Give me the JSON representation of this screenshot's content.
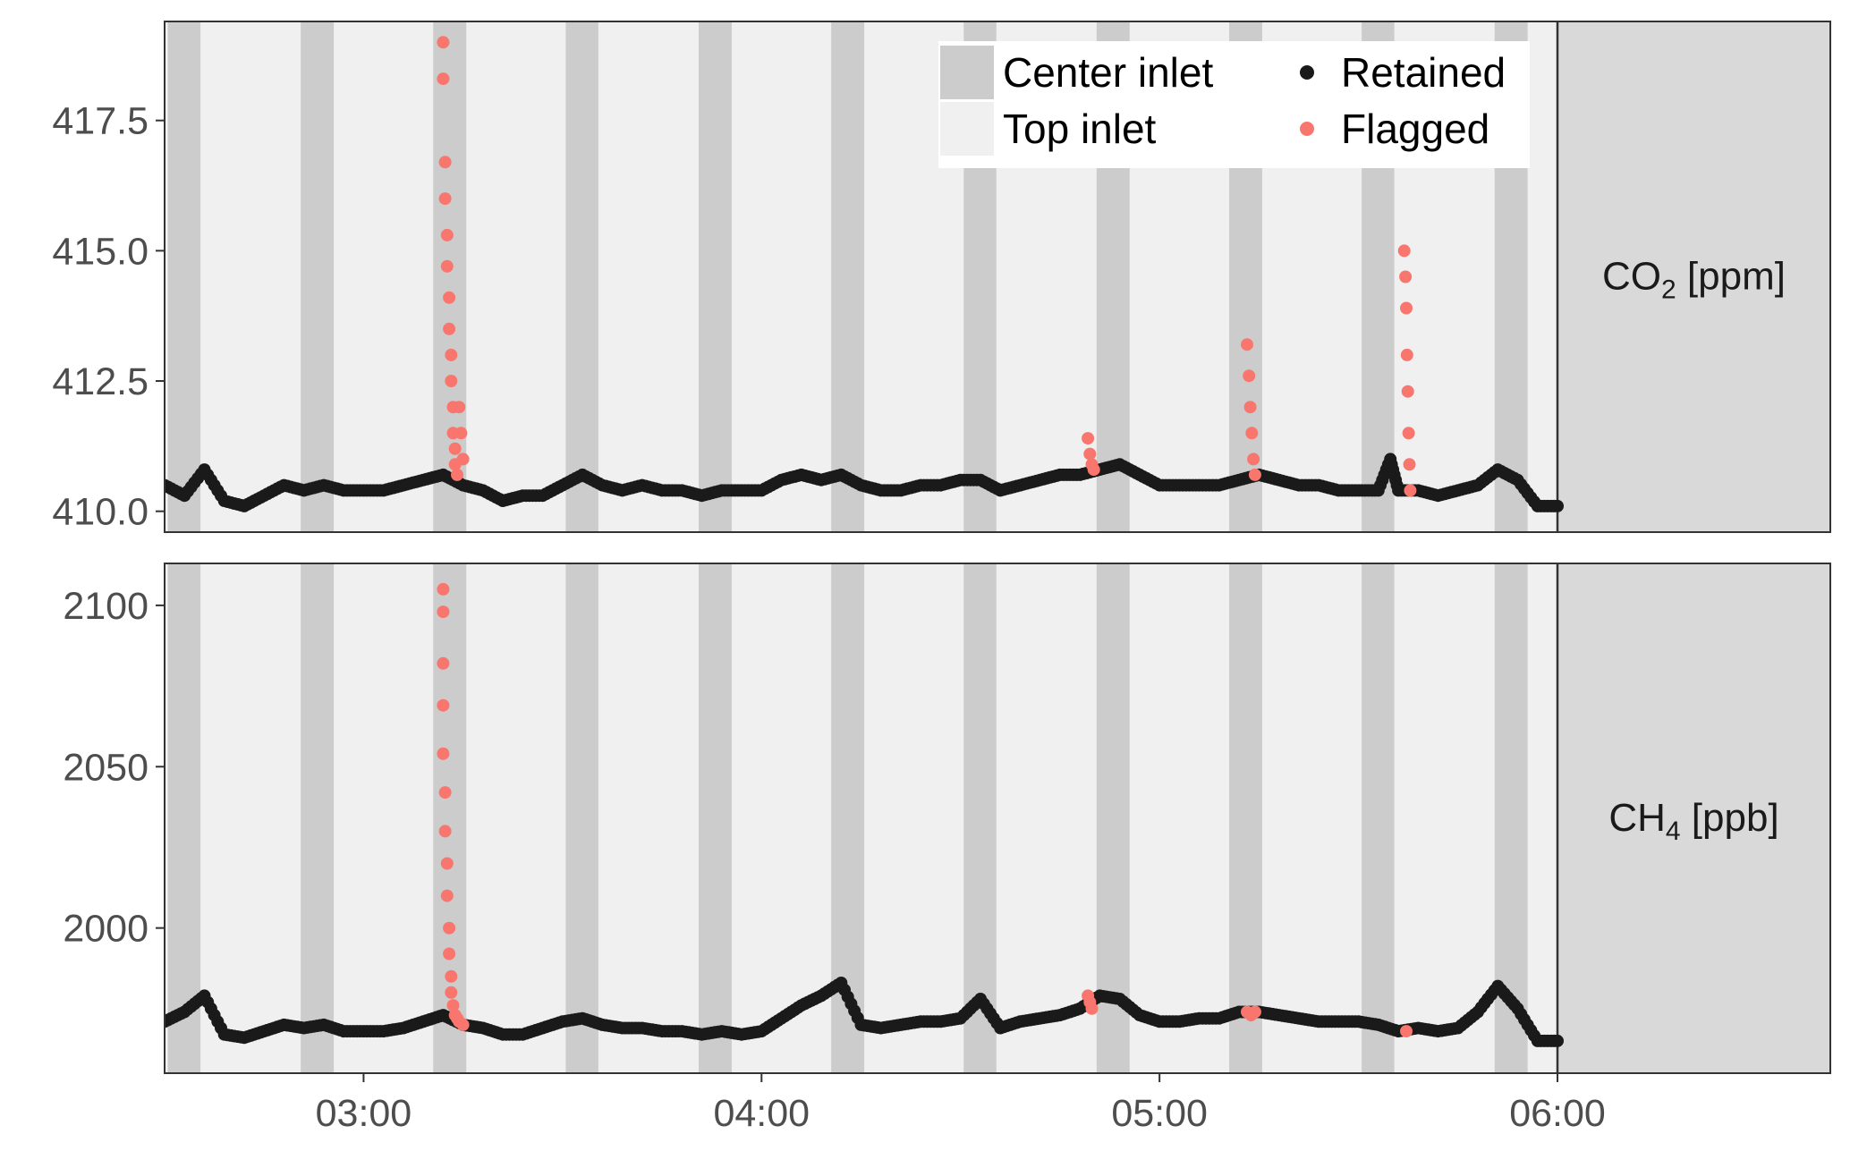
{
  "chart_data": {
    "type": "scatter",
    "x_ticks": [
      "03:00",
      "04:00",
      "05:00",
      "06:00"
    ],
    "x_tick_hours": [
      3,
      4,
      5,
      6
    ],
    "xlim_hours": [
      2.5,
      6.7
    ],
    "background_bands": {
      "center_inlet_hours": [
        [
          2.508,
          2.59
        ],
        [
          2.842,
          2.925
        ],
        [
          3.175,
          3.258
        ],
        [
          3.508,
          3.59
        ],
        [
          3.842,
          3.925
        ],
        [
          4.175,
          4.258
        ],
        [
          4.508,
          4.59
        ],
        [
          4.842,
          4.925
        ],
        [
          5.175,
          5.258
        ],
        [
          5.508,
          5.59
        ],
        [
          5.842,
          5.925
        ]
      ],
      "center_inlet_color": "#cccccc",
      "top_inlet_color": "#f0f0f0",
      "missing_after_hour": 6.0,
      "missing_color": "#d9d9d9"
    },
    "legend": {
      "position": "top-right",
      "fill_entries": [
        {
          "label": "Center inlet",
          "color": "#cccccc"
        },
        {
          "label": "Top inlet",
          "color": "#f0f0f0"
        }
      ],
      "point_entries": [
        {
          "label": "Retained",
          "color": "#1a1a1a"
        },
        {
          "label": "Flagged",
          "color": "#f8766d"
        }
      ]
    },
    "panels": [
      {
        "strip_main": "CO",
        "strip_sub": "2",
        "strip_rest": " [ppm]",
        "ylim": [
          409.6,
          419.4
        ],
        "y_ticks": [
          "410.0",
          "412.5",
          "415.0",
          "417.5"
        ],
        "y_tick_values": [
          410.0,
          412.5,
          415.0,
          417.5
        ],
        "retained": [
          [
            2.5,
            410.5
          ],
          [
            2.55,
            410.3
          ],
          [
            2.6,
            410.8
          ],
          [
            2.65,
            410.2
          ],
          [
            2.7,
            410.1
          ],
          [
            2.75,
            410.3
          ],
          [
            2.8,
            410.5
          ],
          [
            2.85,
            410.4
          ],
          [
            2.9,
            410.5
          ],
          [
            2.95,
            410.4
          ],
          [
            3.0,
            410.4
          ],
          [
            3.05,
            410.4
          ],
          [
            3.1,
            410.5
          ],
          [
            3.15,
            410.6
          ],
          [
            3.2,
            410.7
          ],
          [
            3.25,
            410.5
          ],
          [
            3.3,
            410.4
          ],
          [
            3.35,
            410.2
          ],
          [
            3.4,
            410.3
          ],
          [
            3.45,
            410.3
          ],
          [
            3.5,
            410.5
          ],
          [
            3.55,
            410.7
          ],
          [
            3.6,
            410.5
          ],
          [
            3.65,
            410.4
          ],
          [
            3.7,
            410.5
          ],
          [
            3.75,
            410.4
          ],
          [
            3.8,
            410.4
          ],
          [
            3.85,
            410.3
          ],
          [
            3.9,
            410.4
          ],
          [
            3.95,
            410.4
          ],
          [
            4.0,
            410.4
          ],
          [
            4.05,
            410.6
          ],
          [
            4.1,
            410.7
          ],
          [
            4.15,
            410.6
          ],
          [
            4.2,
            410.7
          ],
          [
            4.25,
            410.5
          ],
          [
            4.3,
            410.4
          ],
          [
            4.35,
            410.4
          ],
          [
            4.4,
            410.5
          ],
          [
            4.45,
            410.5
          ],
          [
            4.5,
            410.6
          ],
          [
            4.55,
            410.6
          ],
          [
            4.6,
            410.4
          ],
          [
            4.65,
            410.5
          ],
          [
            4.7,
            410.6
          ],
          [
            4.75,
            410.7
          ],
          [
            4.8,
            410.7
          ],
          [
            4.85,
            410.8
          ],
          [
            4.9,
            410.9
          ],
          [
            4.95,
            410.7
          ],
          [
            5.0,
            410.5
          ],
          [
            5.05,
            410.5
          ],
          [
            5.1,
            410.5
          ],
          [
            5.15,
            410.5
          ],
          [
            5.2,
            410.6
          ],
          [
            5.25,
            410.7
          ],
          [
            5.3,
            410.6
          ],
          [
            5.35,
            410.5
          ],
          [
            5.4,
            410.5
          ],
          [
            5.45,
            410.4
          ],
          [
            5.5,
            410.4
          ],
          [
            5.55,
            410.4
          ],
          [
            5.58,
            411.0
          ],
          [
            5.6,
            410.4
          ],
          [
            5.65,
            410.4
          ],
          [
            5.7,
            410.3
          ],
          [
            5.75,
            410.4
          ],
          [
            5.8,
            410.5
          ],
          [
            5.85,
            410.8
          ],
          [
            5.9,
            410.6
          ],
          [
            5.95,
            410.1
          ],
          [
            6.0,
            410.1
          ]
        ],
        "flagged": [
          [
            3.2,
            419.0
          ],
          [
            3.2,
            418.3
          ],
          [
            3.205,
            416.7
          ],
          [
            3.205,
            416.0
          ],
          [
            3.21,
            415.3
          ],
          [
            3.21,
            414.7
          ],
          [
            3.215,
            414.1
          ],
          [
            3.215,
            413.5
          ],
          [
            3.22,
            413.0
          ],
          [
            3.22,
            412.5
          ],
          [
            3.225,
            412.0
          ],
          [
            3.225,
            411.5
          ],
          [
            3.23,
            411.2
          ],
          [
            3.23,
            410.9
          ],
          [
            3.235,
            410.7
          ],
          [
            3.24,
            412.0
          ],
          [
            3.245,
            411.5
          ],
          [
            3.25,
            411.0
          ],
          [
            4.82,
            411.4
          ],
          [
            4.825,
            411.1
          ],
          [
            4.83,
            410.9
          ],
          [
            4.835,
            410.8
          ],
          [
            5.22,
            413.2
          ],
          [
            5.225,
            412.6
          ],
          [
            5.228,
            412.0
          ],
          [
            5.232,
            411.5
          ],
          [
            5.236,
            411.0
          ],
          [
            5.24,
            410.7
          ],
          [
            5.615,
            415.0
          ],
          [
            5.618,
            414.5
          ],
          [
            5.62,
            413.9
          ],
          [
            5.622,
            413.0
          ],
          [
            5.624,
            412.3
          ],
          [
            5.626,
            411.5
          ],
          [
            5.628,
            410.9
          ],
          [
            5.63,
            410.4
          ]
        ]
      },
      {
        "strip_main": "CH",
        "strip_sub": "4",
        "strip_rest": " [ppb]",
        "ylim": [
          1955,
          2113
        ],
        "y_ticks": [
          "2000",
          "2050",
          "2100"
        ],
        "y_tick_values": [
          2000,
          2050,
          2100
        ],
        "retained": [
          [
            2.5,
            1971
          ],
          [
            2.55,
            1974
          ],
          [
            2.6,
            1979
          ],
          [
            2.65,
            1967
          ],
          [
            2.7,
            1966
          ],
          [
            2.75,
            1968
          ],
          [
            2.8,
            1970
          ],
          [
            2.85,
            1969
          ],
          [
            2.9,
            1970
          ],
          [
            2.95,
            1968
          ],
          [
            3.0,
            1968
          ],
          [
            3.05,
            1968
          ],
          [
            3.1,
            1969
          ],
          [
            3.15,
            1971
          ],
          [
            3.2,
            1973
          ],
          [
            3.25,
            1970
          ],
          [
            3.3,
            1969
          ],
          [
            3.35,
            1967
          ],
          [
            3.4,
            1967
          ],
          [
            3.45,
            1969
          ],
          [
            3.5,
            1971
          ],
          [
            3.55,
            1972
          ],
          [
            3.6,
            1970
          ],
          [
            3.65,
            1969
          ],
          [
            3.7,
            1969
          ],
          [
            3.75,
            1968
          ],
          [
            3.8,
            1968
          ],
          [
            3.85,
            1967
          ],
          [
            3.9,
            1968
          ],
          [
            3.95,
            1967
          ],
          [
            4.0,
            1968
          ],
          [
            4.05,
            1972
          ],
          [
            4.1,
            1976
          ],
          [
            4.15,
            1979
          ],
          [
            4.2,
            1983
          ],
          [
            4.25,
            1970
          ],
          [
            4.3,
            1969
          ],
          [
            4.35,
            1970
          ],
          [
            4.4,
            1971
          ],
          [
            4.45,
            1971
          ],
          [
            4.5,
            1972
          ],
          [
            4.55,
            1978
          ],
          [
            4.6,
            1969
          ],
          [
            4.65,
            1971
          ],
          [
            4.7,
            1972
          ],
          [
            4.75,
            1973
          ],
          [
            4.8,
            1975
          ],
          [
            4.85,
            1979
          ],
          [
            4.9,
            1978
          ],
          [
            4.95,
            1973
          ],
          [
            5.0,
            1971
          ],
          [
            5.05,
            1971
          ],
          [
            5.1,
            1972
          ],
          [
            5.15,
            1972
          ],
          [
            5.2,
            1974
          ],
          [
            5.25,
            1974
          ],
          [
            5.3,
            1973
          ],
          [
            5.35,
            1972
          ],
          [
            5.4,
            1971
          ],
          [
            5.45,
            1971
          ],
          [
            5.5,
            1971
          ],
          [
            5.55,
            1970
          ],
          [
            5.6,
            1968
          ],
          [
            5.65,
            1969
          ],
          [
            5.7,
            1968
          ],
          [
            5.75,
            1969
          ],
          [
            5.8,
            1974
          ],
          [
            5.85,
            1982
          ],
          [
            5.9,
            1975
          ],
          [
            5.95,
            1965
          ],
          [
            6.0,
            1965
          ]
        ],
        "flagged": [
          [
            3.2,
            2105
          ],
          [
            3.2,
            2098
          ],
          [
            3.2,
            2082
          ],
          [
            3.2,
            2069
          ],
          [
            3.2,
            2054
          ],
          [
            3.205,
            2042
          ],
          [
            3.205,
            2030
          ],
          [
            3.21,
            2020
          ],
          [
            3.21,
            2010
          ],
          [
            3.215,
            2000
          ],
          [
            3.215,
            1992
          ],
          [
            3.22,
            1985
          ],
          [
            3.22,
            1980
          ],
          [
            3.225,
            1976
          ],
          [
            3.23,
            1973
          ],
          [
            3.235,
            1972
          ],
          [
            3.24,
            1971
          ],
          [
            3.25,
            1970
          ],
          [
            4.82,
            1979
          ],
          [
            4.825,
            1977
          ],
          [
            4.83,
            1975
          ],
          [
            5.22,
            1974
          ],
          [
            5.23,
            1973
          ],
          [
            5.24,
            1974
          ],
          [
            5.62,
            1968
          ]
        ]
      }
    ]
  }
}
